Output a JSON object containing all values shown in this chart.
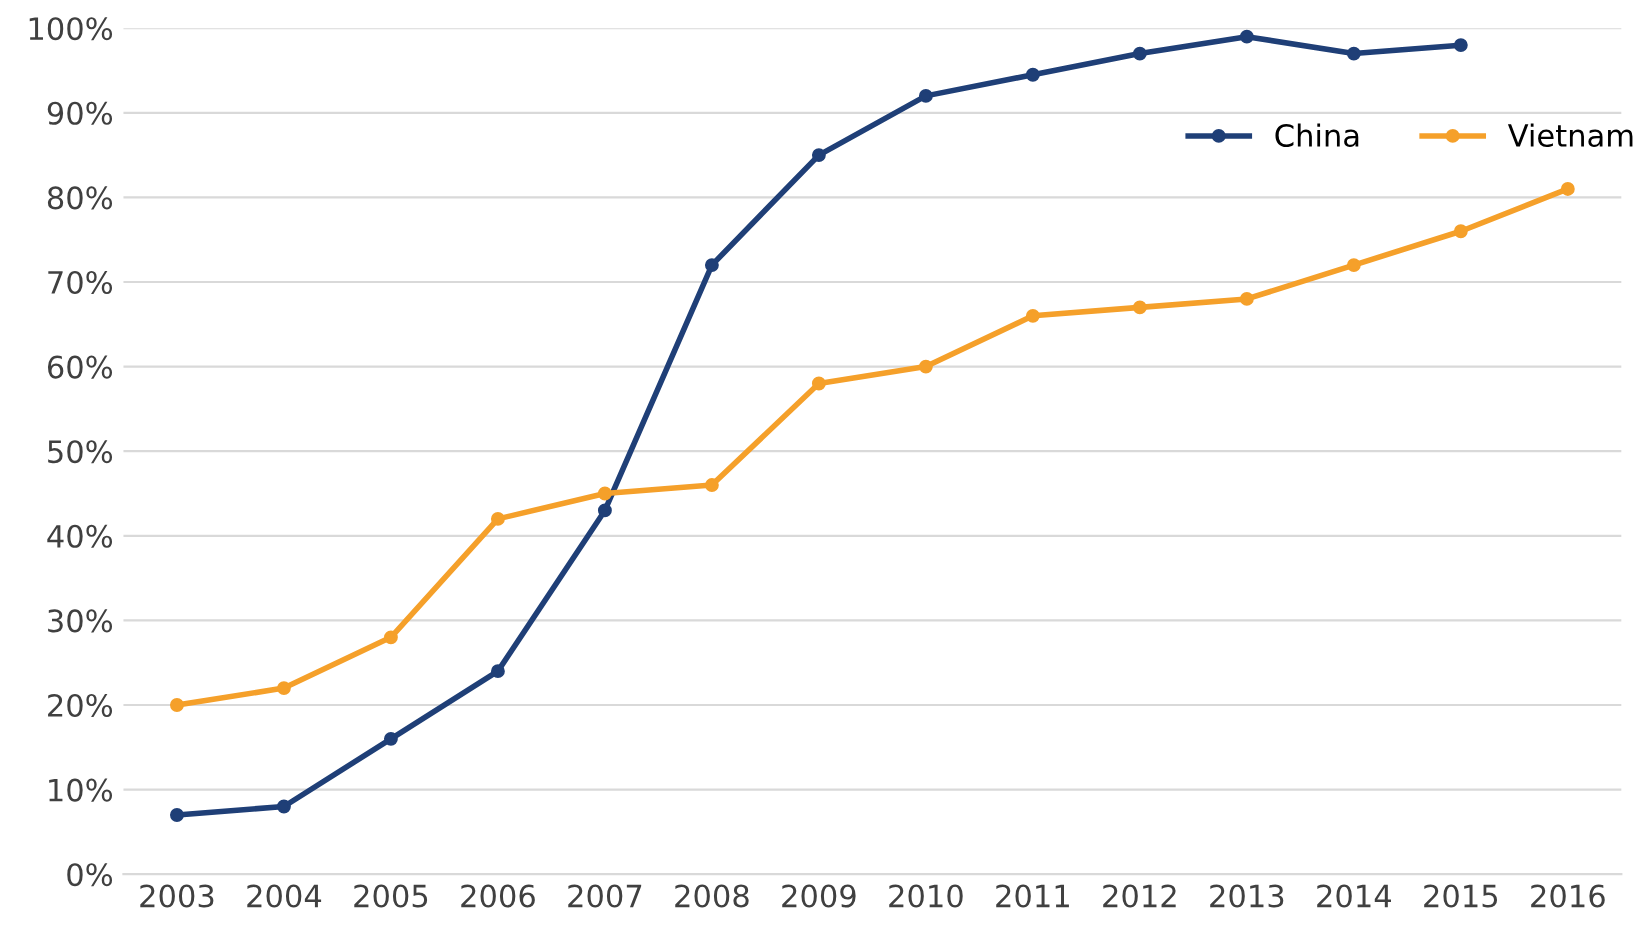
{
  "chart_data": {
    "type": "line",
    "categories": [
      "2003",
      "2004",
      "2005",
      "2006",
      "2007",
      "2008",
      "2009",
      "2010",
      "2011",
      "2012",
      "2013",
      "2014",
      "2015",
      "2016"
    ],
    "series": [
      {
        "name": "China",
        "color": "#1f3f77",
        "values": [
          7,
          8,
          16,
          24,
          43,
          72,
          85,
          92,
          94.5,
          97,
          99,
          97,
          98,
          null
        ]
      },
      {
        "name": "Vietnam",
        "color": "#f5a02a",
        "values": [
          20,
          22,
          28,
          42,
          45,
          46,
          58,
          60,
          66,
          67,
          68,
          72,
          76,
          81
        ]
      }
    ],
    "ylim": [
      0,
      100
    ],
    "yticks": [
      {
        "value": 0,
        "label": "0%"
      },
      {
        "value": 10,
        "label": "10%"
      },
      {
        "value": 20,
        "label": "20%"
      },
      {
        "value": 30,
        "label": "30%"
      },
      {
        "value": 40,
        "label": "40%"
      },
      {
        "value": 50,
        "label": "50%"
      },
      {
        "value": 60,
        "label": "60%"
      },
      {
        "value": 70,
        "label": "70%"
      },
      {
        "value": 80,
        "label": "80%"
      },
      {
        "value": 90,
        "label": "90%"
      },
      {
        "value": 100,
        "label": "100%"
      }
    ],
    "grid": "y",
    "legend": "top right",
    "marker": "circle",
    "line_style": "solid"
  }
}
